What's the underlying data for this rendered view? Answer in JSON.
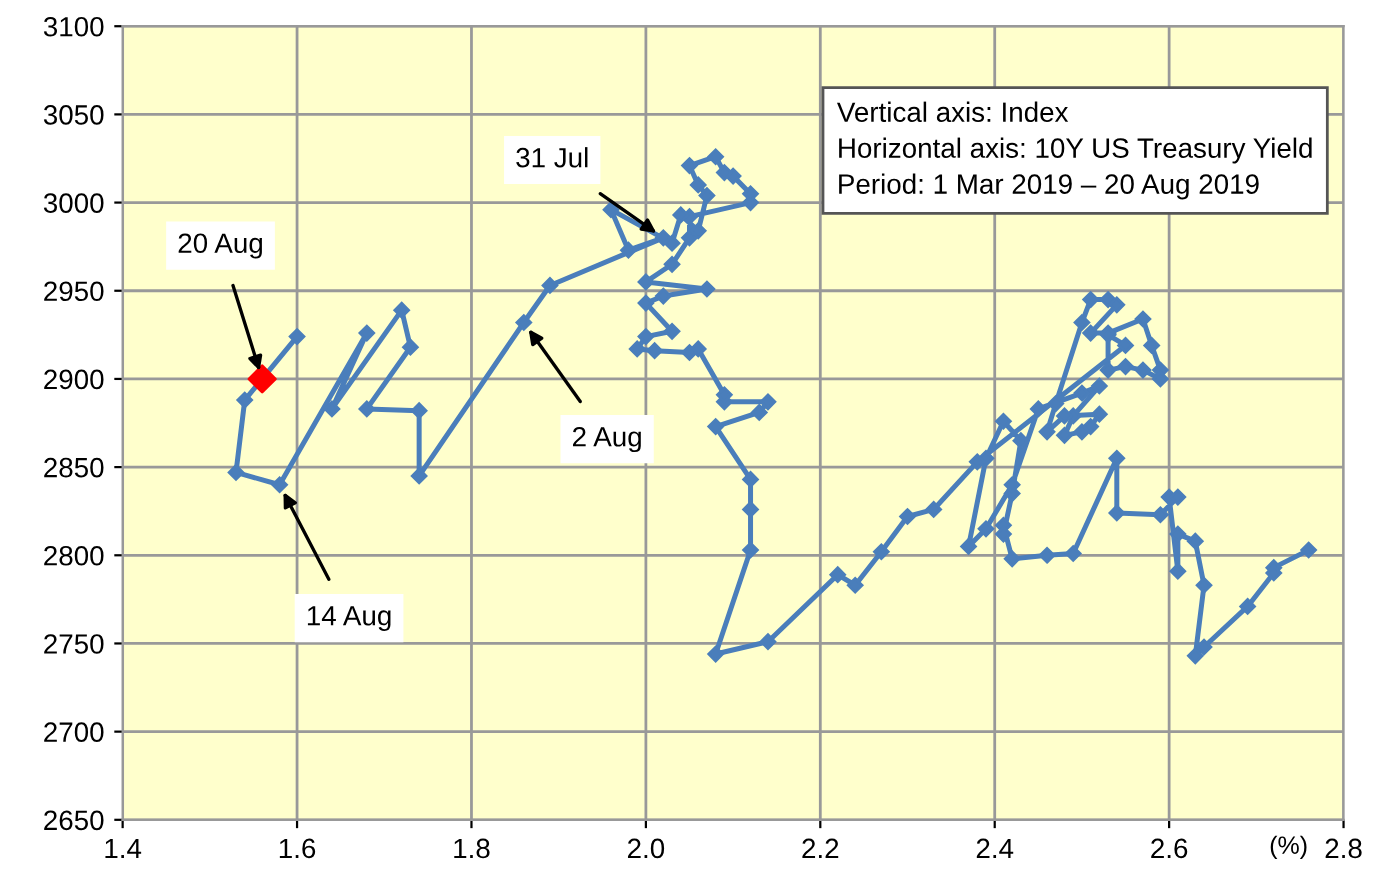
{
  "chart_data": {
    "type": "line",
    "xlabel": "(%)",
    "xlim": [
      1.4,
      2.8
    ],
    "xticks": [
      1.4,
      1.6,
      1.8,
      {
        "value": 2,
        "label": "2.0"
      },
      2.2,
      2.4,
      2.6,
      2.8
    ],
    "ylim": [
      2650,
      3100
    ],
    "yticks": [
      2650,
      2700,
      2750,
      2800,
      2850,
      2900,
      2950,
      3000,
      3050,
      3100
    ],
    "grid": true,
    "marker": "diamond",
    "line_style": "solid",
    "series": [
      {
        "color": "#4a7ebb",
        "x": [
          2.76,
          2.72,
          2.72,
          2.69,
          2.64,
          2.63,
          2.64,
          2.63,
          2.61,
          2.61,
          2.6,
          2.61,
          2.59,
          2.54,
          2.54,
          2.49,
          2.46,
          2.42,
          2.41,
          2.41,
          2.42,
          2.43,
          2.41,
          2.39,
          2.37,
          2.39,
          2.42,
          2.45,
          2.5,
          2.52,
          2.49,
          2.48,
          2.5,
          2.51,
          2.52,
          2.48,
          2.46,
          2.47,
          2.5,
          2.51,
          2.53,
          2.54,
          2.51,
          2.53,
          2.57,
          2.58,
          2.59,
          2.59,
          2.57,
          2.55,
          2.53,
          2.53,
          2.55,
          2.38,
          2.33,
          2.3,
          2.27,
          2.24,
          2.22,
          2.14,
          2.08,
          2.12,
          2.12,
          2.12,
          2.08,
          2.13,
          2.14,
          2.09,
          2.09,
          2.06,
          2.05,
          2.01,
          1.99,
          2.0,
          2.03,
          2.0,
          2.02,
          2.07,
          2.0,
          2.03,
          2.05,
          2.05,
          2.12,
          2.12,
          2.1,
          2.09,
          2.08,
          2.05,
          2.06,
          2.07,
          2.06,
          2.04,
          2.03,
          1.96,
          1.98,
          2.02,
          1.89,
          1.86,
          1.74,
          1.74,
          1.68,
          1.73,
          1.72,
          1.64,
          1.68,
          1.58,
          1.53,
          1.54,
          1.6,
          1.56
        ],
        "values": [
          2803,
          2793,
          2790,
          2771,
          2748,
          2743,
          2783,
          2808,
          2812,
          2791,
          2833,
          2833,
          2823,
          2824,
          2855,
          2801,
          2800,
          2798,
          2817,
          2812,
          2835,
          2865,
          2876,
          2855,
          2805,
          2815,
          2840,
          2883,
          2892,
          2896,
          2879,
          2868,
          2870,
          2873,
          2880,
          2879,
          2870,
          2886,
          2932,
          2945,
          2945,
          2942,
          2926,
          2926,
          2934,
          2919,
          2905,
          2900,
          2905,
          2907,
          2905,
          2925,
          2919,
          2853,
          2826,
          2822,
          2802,
          2783,
          2789,
          2751,
          2744,
          2803,
          2826,
          2843,
          2873,
          2881,
          2887,
          2887,
          2891,
          2917,
          2915,
          2916,
          2917,
          2924,
          2927,
          2943,
          2947,
          2951,
          2955,
          2965,
          2980,
          2992,
          3000,
          3005,
          3015,
          3017,
          3026,
          3021,
          3010,
          3004,
          2984,
          2993,
          2977,
          2996,
          2973,
          2980,
          2953,
          2932,
          2845,
          2882,
          2883,
          2918,
          2939,
          2883,
          2926,
          2840,
          2847,
          2888,
          2924,
          2900
        ]
      },
      {
        "type": "scatter",
        "color": "#ff0000",
        "x": [
          1.56
        ],
        "values": [
          2900
        ]
      }
    ],
    "annotations": [
      {
        "text": "31 Jul",
        "x": 2.02,
        "y": 2980
      },
      {
        "text": "20 Aug",
        "x": 1.56,
        "y": 2900
      },
      {
        "text": "2 Aug",
        "x": 1.86,
        "y": 2932
      },
      {
        "text": "14 Aug",
        "x": 1.58,
        "y": 2840
      },
      "Vertical axis: Index\nHorizontal axis: 10Y US Treasury Yield\nPeriod: 1 Mar 2019 – 20 Aug 2019"
    ]
  }
}
